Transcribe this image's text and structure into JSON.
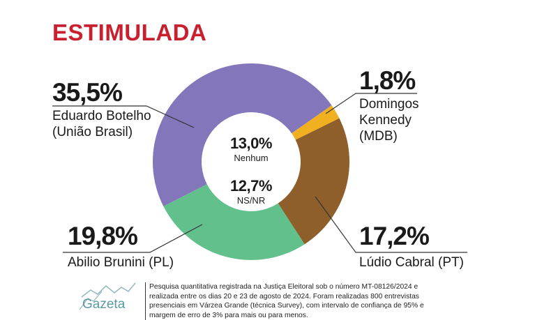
{
  "chart_data": {
    "type": "pie",
    "style": "donut",
    "title": "ESTIMULADA",
    "slices": [
      {
        "value": 35.5,
        "label": "35,5%",
        "name": "Eduardo Botelho",
        "party": "(União Brasil)",
        "color": "#8476bb"
      },
      {
        "value": 1.8,
        "label": "1,8%",
        "name": "Domingos Kennedy",
        "party": "(MDB)",
        "color": "#f0b020"
      },
      {
        "value": 17.2,
        "label": "17,2%",
        "name": "Lúdio Cabral (PT)",
        "party": "",
        "color": "#8e5f2a"
      },
      {
        "value": 19.8,
        "label": "19,8%",
        "name": "Abilio Brunini (PL)",
        "party": "",
        "color": "#62c08c"
      }
    ],
    "center": [
      {
        "value": 13.0,
        "label": "13,0%",
        "name": "Nenhum"
      },
      {
        "value": 12.7,
        "label": "12,7%",
        "name": "NS/NR"
      }
    ]
  },
  "labels": {
    "botelho_line1": "Eduardo Botelho",
    "kennedy_line1": "Domingos",
    "kennedy_line2": "Kennedy"
  },
  "footer": {
    "logo": "Gazeta",
    "note": "Pesquisa quantitativa registrada na Justiça Eleitoral sob o número MT-08126/2024 e realizada entre os dias 20 e 23 de agosto de 2024. Foram realizadas 800 entrevistas presenciais em Várzea Grande (técnica Survey), com intervalo de confiança de 95% e margem de erro de 3% para mais ou para menos."
  }
}
